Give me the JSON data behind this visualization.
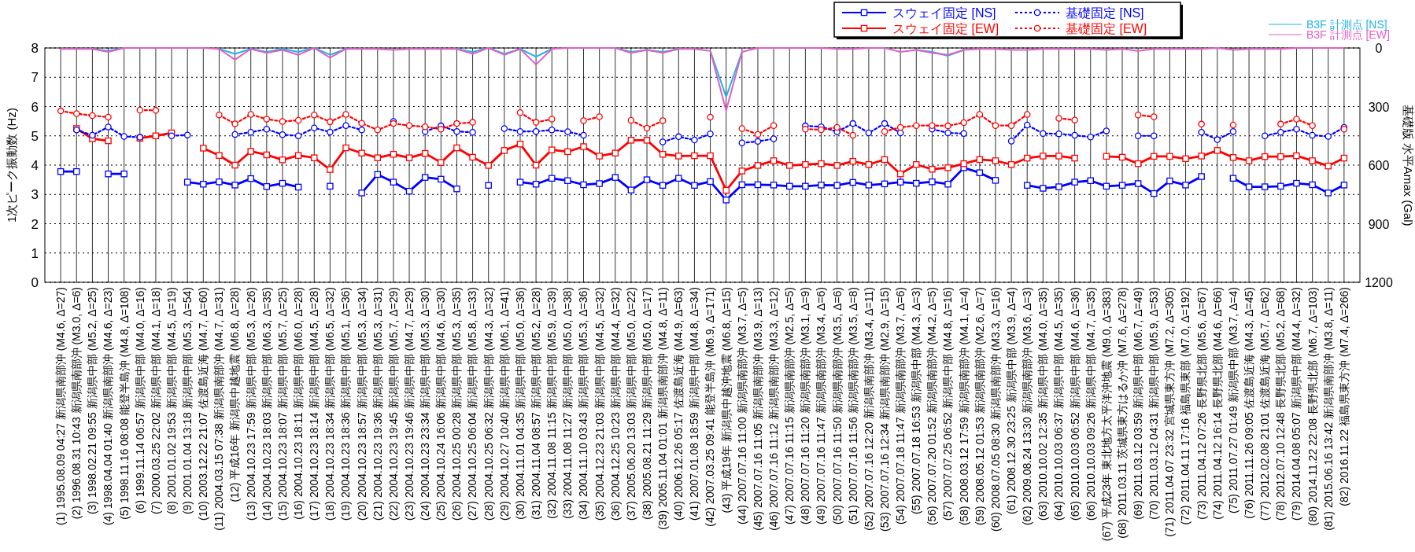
{
  "chart_data": {
    "type": "line",
    "ylabel": "1次ピーク振動数 (Hz)",
    "y2label": "基礎版 水平Amax (Gal)",
    "ylim": [
      0,
      8
    ],
    "yticks": [
      0,
      1,
      2,
      3,
      4,
      5,
      6,
      7,
      8
    ],
    "y2lim": [
      1200,
      0
    ],
    "y2ticks": [
      0,
      300,
      600,
      900,
      1200
    ],
    "grid": true,
    "legend": "top right",
    "categories": [
      "(1) 1995.08.09 04:27 新潟県南部沖 (M4.6, Δ=27)",
      "(2) 1996.08.31 10:43 新潟県南部沖 (M3.0, Δ=6)",
      "(3) 1998.02.21 09:55 新潟県中部 (M5.2, Δ=25)",
      "(4) 1998.04.04 01:40 新潟県南部沖 (M4.6, Δ=23)",
      "(5) 1998.11.16 08:08 能登半島沖 (M4.8, Δ=108)",
      "(6) 1999.11.14 06:57 新潟県中部 (M4.0, Δ=16)",
      "(7) 2000.03.25 22:02 新潟県中部 (M4.1, Δ=18)",
      "(8) 2001.01.02 19:53 新潟県中部 (M4.5, Δ=19)",
      "(9) 2001.01.04 13:18 新潟県中部 (M5.3, Δ=54)",
      "(10) 2003.12.22 21:07 佐渡島近海 (M4.7, Δ=60)",
      "(11) 2004.03.15 07:38 新潟県南部沖 (M4.7, Δ=31)",
      "(12) 平成16年 新潟県中越地震 (M6.8, Δ=28)",
      "(13) 2004.10.23 17:59 新潟県中部 (M5.3, Δ=26)",
      "(14) 2004.10.23 18:03 新潟県中部 (M6.3, Δ=35)",
      "(15) 2004.10.23 18:07 新潟県中部 (M5.7, Δ=25)",
      "(16) 2004.10.23 18:11 新潟県中部 (M6.0, Δ=28)",
      "(17) 2004.10.23 18:14 新潟県中部 (M4.5, Δ=28)",
      "(18) 2004.10.23 18:34 新潟県中部 (M6.5, Δ=32)",
      "(19) 2004.10.23 18:36 新潟県中部 (M5.1, Δ=36)",
      "(20) 2004.10.23 18:57 新潟県中部 (M5.3, Δ=34)",
      "(21) 2004.10.23 19:36 新潟県中部 (M5.3, Δ=31)",
      "(22) 2004.10.23 19:45 新潟県中部 (M5.7, Δ=29)",
      "(23) 2004.10.23 19:46 新潟県中部 (M4.7, Δ=29)",
      "(24) 2004.10.23 23:34 新潟県中部 (M5.3, Δ=30)",
      "(25) 2004.10.24 16:06 新潟県中部 (M4.6, Δ=30)",
      "(26) 2004.10.25 00:28 新潟県中部 (M5.3, Δ=35)",
      "(27) 2004.10.25 06:04 新潟県中部 (M5.8, Δ=33)",
      "(28) 2004.10.25 06:32 新潟県中部 (M4.3, Δ=32)",
      "(29) 2004.10.27 10:40 新潟県中部 (M6.1, Δ=41)",
      "(30) 2004.11.01 04:35 新潟県中部 (M5.0, Δ=36)",
      "(31) 2004.11.04 08:57 新潟県中部 (M5.2, Δ=28)",
      "(32) 2004.11.08 11:15 新潟県中部 (M5.9, Δ=39)",
      "(33) 2004.11.08 11:27 新潟県中部 (M5.0, Δ=38)",
      "(34) 2004.11.10 03:43 新潟県中部 (M5.3, Δ=36)",
      "(35) 2004.12.23 21:03 新潟県中部 (M4.5, Δ=32)",
      "(36) 2004.12.25 10:23 新潟県中部 (M4.4, Δ=32)",
      "(37) 2005.06.20 13:03 新潟県中部 (M5.0, Δ=22)",
      "(38) 2005.08.21 11:29 新潟県中部 (M5.0, Δ=17)",
      "(39) 2005.11.04 01:01 新潟県南部沖 (M4.8, Δ=11)",
      "(40) 2006.12.26 05:17 佐渡島近海 (M4.9, Δ=63)",
      "(41) 2007.01.08 18:59 新潟県中部 (M4.8, Δ=34)",
      "(42) 2007.03.25 09:41 能登半島沖 (M6.9, Δ=171)",
      "(43) 平成19年 新潟県中越沖地震 (M6.8, Δ=15)",
      "(44) 2007.07.16 11:00 新潟県南部沖 (M3.7, Δ=5)",
      "(45) 2007.07.16 11:05 新潟県南部沖 (M3.9, Δ=13)",
      "(46) 2007.07.16 11:12 新潟県南部沖 (M3.3, Δ=12)",
      "(47) 2007.07.16 11:15 新潟県南部沖 (M2.5, Δ=5)",
      "(48) 2007.07.16 11:20 新潟県南部沖 (M3.1, Δ=9)",
      "(49) 2007.07.16 11:47 新潟県南部沖 (M3.4, Δ=6)",
      "(50) 2007.07.16 11:50 新潟県南部沖 (M3.5, Δ=6)",
      "(51) 2007.07.16 11:56 新潟県南部沖 (M3.5, Δ=8)",
      "(52) 2007.07.16 12:20 新潟県南部沖 (M3.4, Δ=11)",
      "(53) 2007.07.16 12:34 新潟県南部沖 (M2.9, Δ=15)",
      "(54) 2007.07.18 11:47 新潟県南部沖 (M3.7, Δ=6)",
      "(55) 2007.07.18 16:53 新潟県中部 (M4.3, Δ=3)",
      "(56) 2007.07.20 01:52 新潟県南部沖 (M4.2, Δ=5)",
      "(57) 2007.07.25 06:52 新潟県中部 (M4.8, Δ=16)",
      "(58) 2008.03.12 17:59 新潟県南部沖 (M4.1, Δ=4)",
      "(59) 2008.05.12 01:53 新潟県南部沖 (M2.6, Δ=7)",
      "(60) 2008.07.05 08:30 新潟県南部沖 (M3.3, Δ=16)",
      "(61) 2008.12.30 23:25 新潟県中部 (M3.9, Δ=4)",
      "(62) 2009.08.24 13:30 新潟県南部沖 (M3.6, Δ=3)",
      "(63) 2010.10.02 12:35 新潟県中部 (M4.0, Δ=35)",
      "(64) 2010.10.03 06:37 新潟県中部 (M4.5, Δ=35)",
      "(65) 2010.10.03 06:52 新潟県中部 (M4.6, Δ=36)",
      "(66) 2010.10.03 09:26 新潟県中部 (M4.7, Δ=35)",
      "(67) 平成23年 東北地方太平洋沖地震 (M9.0, Δ=383)",
      "(68) 2011.03.11 茨城県東方はるか沖 (M7.6, Δ=278)",
      "(69) 2011.03.12 03:59 新潟県中部 (M6.7, Δ=49)",
      "(70) 2011.03.12 04:31 新潟県中部 (M5.9, Δ=53)",
      "(71) 2011.04.07 23:32 宮城県東方沖 (M7.2, Δ=305)",
      "(72) 2011.04.11 17:16 福島県東部 (M7.0, Δ=192)",
      "(73) 2011.04.12 07:26 長野県北部 (M5.6, Δ=67)",
      "(74) 2011.04.12 16:14 長野県北部 (M4.6, Δ=66)",
      "(75) 2011.07.27 01:49 新潟県中部 (M3.7, Δ=4)",
      "(76) 2011.11.26 09:05 佐渡島近海 (M4.3, Δ=45)",
      "(77) 2012.02.08 21:01 佐渡島近海 (M5.7, Δ=62)",
      "(78) 2012.07.10 12:48 長野県北部 (M5.2, Δ=68)",
      "(79) 2014.04.08 05:07 新潟県中部 (M4.4, Δ=32)",
      "(80) 2014.11.22 22:08 長野県北部 (M6.7, Δ=103)",
      "(81) 2015.06.16 13:42 新潟県南部沖 (M3.8, Δ=11)",
      "(82) 2016.11.22 福島県東方沖 (M7.4, Δ=266)"
    ],
    "series": [
      {
        "name": "スウェイ固定 [NS]",
        "color": "#0000ff",
        "marker": "square",
        "line_style": "solid",
        "values": [
          3.78,
          3.78,
          null,
          3.7,
          3.7,
          null,
          null,
          null,
          3.42,
          3.35,
          3.43,
          3.32,
          3.54,
          3.27,
          3.38,
          3.25,
          null,
          3.28,
          null,
          3.05,
          3.68,
          3.42,
          3.11,
          3.58,
          3.52,
          3.19,
          null,
          3.31,
          null,
          3.42,
          3.35,
          3.55,
          3.47,
          3.33,
          3.37,
          3.58,
          3.15,
          3.5,
          3.31,
          3.55,
          3.31,
          3.44,
          2.81,
          3.33,
          3.33,
          3.32,
          3.28,
          3.28,
          3.32,
          3.31,
          3.41,
          3.32,
          3.36,
          3.42,
          3.38,
          3.43,
          3.35,
          3.91,
          3.74,
          3.48,
          null,
          3.31,
          3.21,
          3.26,
          3.42,
          3.47,
          3.28,
          3.31,
          3.37,
          3.03,
          3.46,
          3.32,
          3.61,
          null,
          3.55,
          3.26,
          3.26,
          3.28,
          3.38,
          3.33,
          3.05,
          3.32
        ]
      },
      {
        "name": "スウェイ固定 [EW]",
        "color": "#ff0000",
        "marker": "square",
        "line_style": "solid",
        "values": [
          null,
          5.25,
          4.9,
          4.83,
          null,
          4.92,
          5.0,
          5.1,
          null,
          4.58,
          4.33,
          4.0,
          4.47,
          4.35,
          4.18,
          4.33,
          4.25,
          3.85,
          4.59,
          4.41,
          4.25,
          4.37,
          4.25,
          4.4,
          4.09,
          4.59,
          4.27,
          3.99,
          4.5,
          4.72,
          4.0,
          4.52,
          4.46,
          4.63,
          4.31,
          4.41,
          4.85,
          4.85,
          4.37,
          4.31,
          4.32,
          4.32,
          3.14,
          3.8,
          3.99,
          4.15,
          3.99,
          4.02,
          4.05,
          3.99,
          4.13,
          4.02,
          4.19,
          3.7,
          4.02,
          3.86,
          3.91,
          4.05,
          4.19,
          4.15,
          4.02,
          4.24,
          4.31,
          4.31,
          4.24,
          null,
          4.3,
          4.27,
          4.05,
          4.3,
          4.3,
          4.22,
          4.31,
          4.5,
          4.26,
          4.15,
          4.29,
          4.29,
          4.32,
          4.15,
          3.97,
          4.24
        ]
      },
      {
        "name": "基礎固定 [NS]",
        "color": "#0000ff",
        "marker": "circle",
        "line_style": "dotted",
        "values": [
          null,
          5.2,
          5.02,
          5.3,
          4.98,
          4.95,
          null,
          5.0,
          5.03,
          null,
          null,
          5.05,
          5.12,
          5.23,
          5.04,
          5.0,
          5.27,
          5.13,
          5.35,
          5.2,
          null,
          5.49,
          null,
          5.15,
          5.34,
          5.15,
          5.12,
          null,
          5.25,
          5.15,
          5.15,
          5.2,
          5.14,
          5.02,
          null,
          null,
          null,
          null,
          4.79,
          4.97,
          4.86,
          5.07,
          null,
          4.76,
          4.81,
          4.9,
          null,
          5.34,
          5.31,
          5.14,
          5.42,
          5.1,
          5.42,
          5.1,
          null,
          5.23,
          5.1,
          5.08,
          null,
          null,
          4.82,
          5.37,
          5.08,
          5.07,
          5.02,
          4.96,
          5.17,
          null,
          5.0,
          5.0,
          null,
          null,
          5.12,
          4.87,
          5.15,
          null,
          5.0,
          5.12,
          5.23,
          5.02,
          4.98,
          5.29
        ]
      },
      {
        "name": "基礎固定 [EW]",
        "color": "#ff0000",
        "marker": "circle",
        "line_style": "dotted",
        "values": [
          5.85,
          5.76,
          5.69,
          5.64,
          null,
          5.88,
          5.87,
          null,
          null,
          null,
          5.71,
          5.41,
          5.73,
          5.57,
          5.49,
          5.53,
          5.71,
          5.48,
          5.73,
          5.43,
          5.2,
          5.42,
          5.35,
          5.31,
          5.23,
          5.42,
          5.46,
          null,
          null,
          5.79,
          5.46,
          5.57,
          null,
          5.52,
          5.65,
          null,
          5.53,
          5.26,
          5.52,
          null,
          null,
          5.64,
          null,
          5.25,
          5.05,
          5.35,
          null,
          5.23,
          5.21,
          5.29,
          5.02,
          null,
          5.15,
          5.29,
          5.35,
          5.35,
          5.34,
          5.45,
          5.73,
          5.35,
          5.35,
          5.73,
          null,
          5.6,
          5.54,
          null,
          null,
          null,
          5.71,
          5.65,
          null,
          null,
          5.4,
          null,
          5.37,
          null,
          null,
          5.4,
          5.57,
          5.35,
          null,
          5.23
        ]
      },
      {
        "name": "B3F 計測点 [NS]",
        "color": "#22b4e8",
        "marker": "none",
        "line_style": "solid",
        "axis": "y2",
        "values": [
          null,
          null,
          5,
          15,
          0,
          null,
          null,
          null,
          null,
          null,
          5,
          30,
          5,
          20,
          5,
          20,
          0,
          35,
          5,
          null,
          null,
          null,
          null,
          null,
          null,
          5,
          20,
          0,
          30,
          5,
          45,
          5,
          null,
          null,
          null,
          0,
          20,
          10,
          20,
          5,
          null,
          15,
          250,
          20,
          null,
          null,
          null,
          null,
          null,
          null,
          null,
          null,
          null,
          null,
          10,
          20,
          40,
          10,
          null,
          null,
          null,
          null,
          null,
          null,
          null,
          null,
          null,
          null,
          null,
          null,
          null,
          null,
          null,
          null,
          null,
          null,
          null,
          null,
          null,
          null,
          null,
          null
        ]
      },
      {
        "name": "B3F 計測点 [EW]",
        "color": "#e060c8",
        "marker": "none",
        "line_style": "solid",
        "axis": "y2",
        "values": [
          5,
          5,
          5,
          20,
          0,
          0,
          0,
          0,
          0,
          0,
          5,
          60,
          5,
          25,
          10,
          35,
          0,
          50,
          5,
          5,
          5,
          10,
          5,
          5,
          5,
          5,
          30,
          0,
          35,
          5,
          85,
          5,
          0,
          0,
          0,
          0,
          25,
          10,
          25,
          5,
          5,
          15,
          320,
          20,
          0,
          0,
          0,
          0,
          0,
          5,
          5,
          0,
          0,
          20,
          10,
          25,
          35,
          10,
          5,
          5,
          10,
          10,
          5,
          5,
          5,
          5,
          10,
          5,
          15,
          5,
          5,
          5,
          5,
          0,
          10,
          5,
          5,
          5,
          0,
          0,
          0,
          0
        ]
      }
    ]
  }
}
